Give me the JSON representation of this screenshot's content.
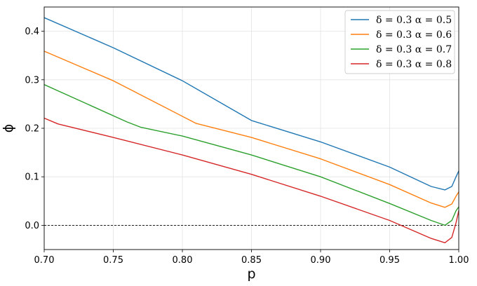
{
  "chart_data": {
    "type": "line",
    "title": "",
    "xlabel": "p",
    "ylabel": "ϕ",
    "xlim": [
      0.7,
      1.0
    ],
    "ylim": [
      -0.05,
      0.45
    ],
    "xticks": [
      "0.70",
      "0.75",
      "0.80",
      "0.85",
      "0.90",
      "0.95",
      "1.00"
    ],
    "yticks": [
      "0.0",
      "0.1",
      "0.2",
      "0.3",
      "0.4"
    ],
    "grid": true,
    "legend_position": "top-right",
    "reference_line": {
      "y": 0.0,
      "style": "dashed",
      "color": "#000000"
    },
    "series": [
      {
        "name": "δ = 0.3 α = 0.5",
        "color": "#1f77b4",
        "points": [
          [
            0.7,
            0.428
          ],
          [
            0.75,
            0.366
          ],
          [
            0.8,
            0.298
          ],
          [
            0.85,
            0.216
          ],
          [
            0.9,
            0.172
          ],
          [
            0.95,
            0.12
          ],
          [
            0.98,
            0.08
          ],
          [
            0.99,
            0.073
          ],
          [
            0.995,
            0.08
          ],
          [
            0.998,
            0.1
          ],
          [
            1.0,
            0.112
          ]
        ]
      },
      {
        "name": "δ = 0.3 α = 0.6",
        "color": "#ff7f0e",
        "points": [
          [
            0.7,
            0.359
          ],
          [
            0.75,
            0.298
          ],
          [
            0.81,
            0.21
          ],
          [
            0.85,
            0.181
          ],
          [
            0.9,
            0.137
          ],
          [
            0.95,
            0.084
          ],
          [
            0.98,
            0.046
          ],
          [
            0.99,
            0.037
          ],
          [
            0.995,
            0.044
          ],
          [
            0.998,
            0.06
          ],
          [
            1.0,
            0.069
          ]
        ]
      },
      {
        "name": "δ = 0.3 α = 0.7",
        "color": "#2ca02c",
        "points": [
          [
            0.7,
            0.29
          ],
          [
            0.76,
            0.213
          ],
          [
            0.77,
            0.202
          ],
          [
            0.8,
            0.184
          ],
          [
            0.85,
            0.145
          ],
          [
            0.9,
            0.1
          ],
          [
            0.95,
            0.045
          ],
          [
            0.98,
            0.01
          ],
          [
            0.99,
            0.0
          ],
          [
            0.995,
            0.01
          ],
          [
            0.998,
            0.03
          ],
          [
            1.0,
            0.038
          ]
        ]
      },
      {
        "name": "δ = 0.3 α = 0.8",
        "color": "#d62728",
        "points": [
          [
            0.7,
            0.221
          ],
          [
            0.71,
            0.209
          ],
          [
            0.75,
            0.181
          ],
          [
            0.8,
            0.145
          ],
          [
            0.85,
            0.105
          ],
          [
            0.9,
            0.06
          ],
          [
            0.95,
            0.01
          ],
          [
            0.98,
            -0.027
          ],
          [
            0.99,
            -0.036
          ],
          [
            0.995,
            -0.025
          ],
          [
            0.998,
            0.005
          ],
          [
            1.0,
            0.03
          ]
        ]
      }
    ]
  }
}
